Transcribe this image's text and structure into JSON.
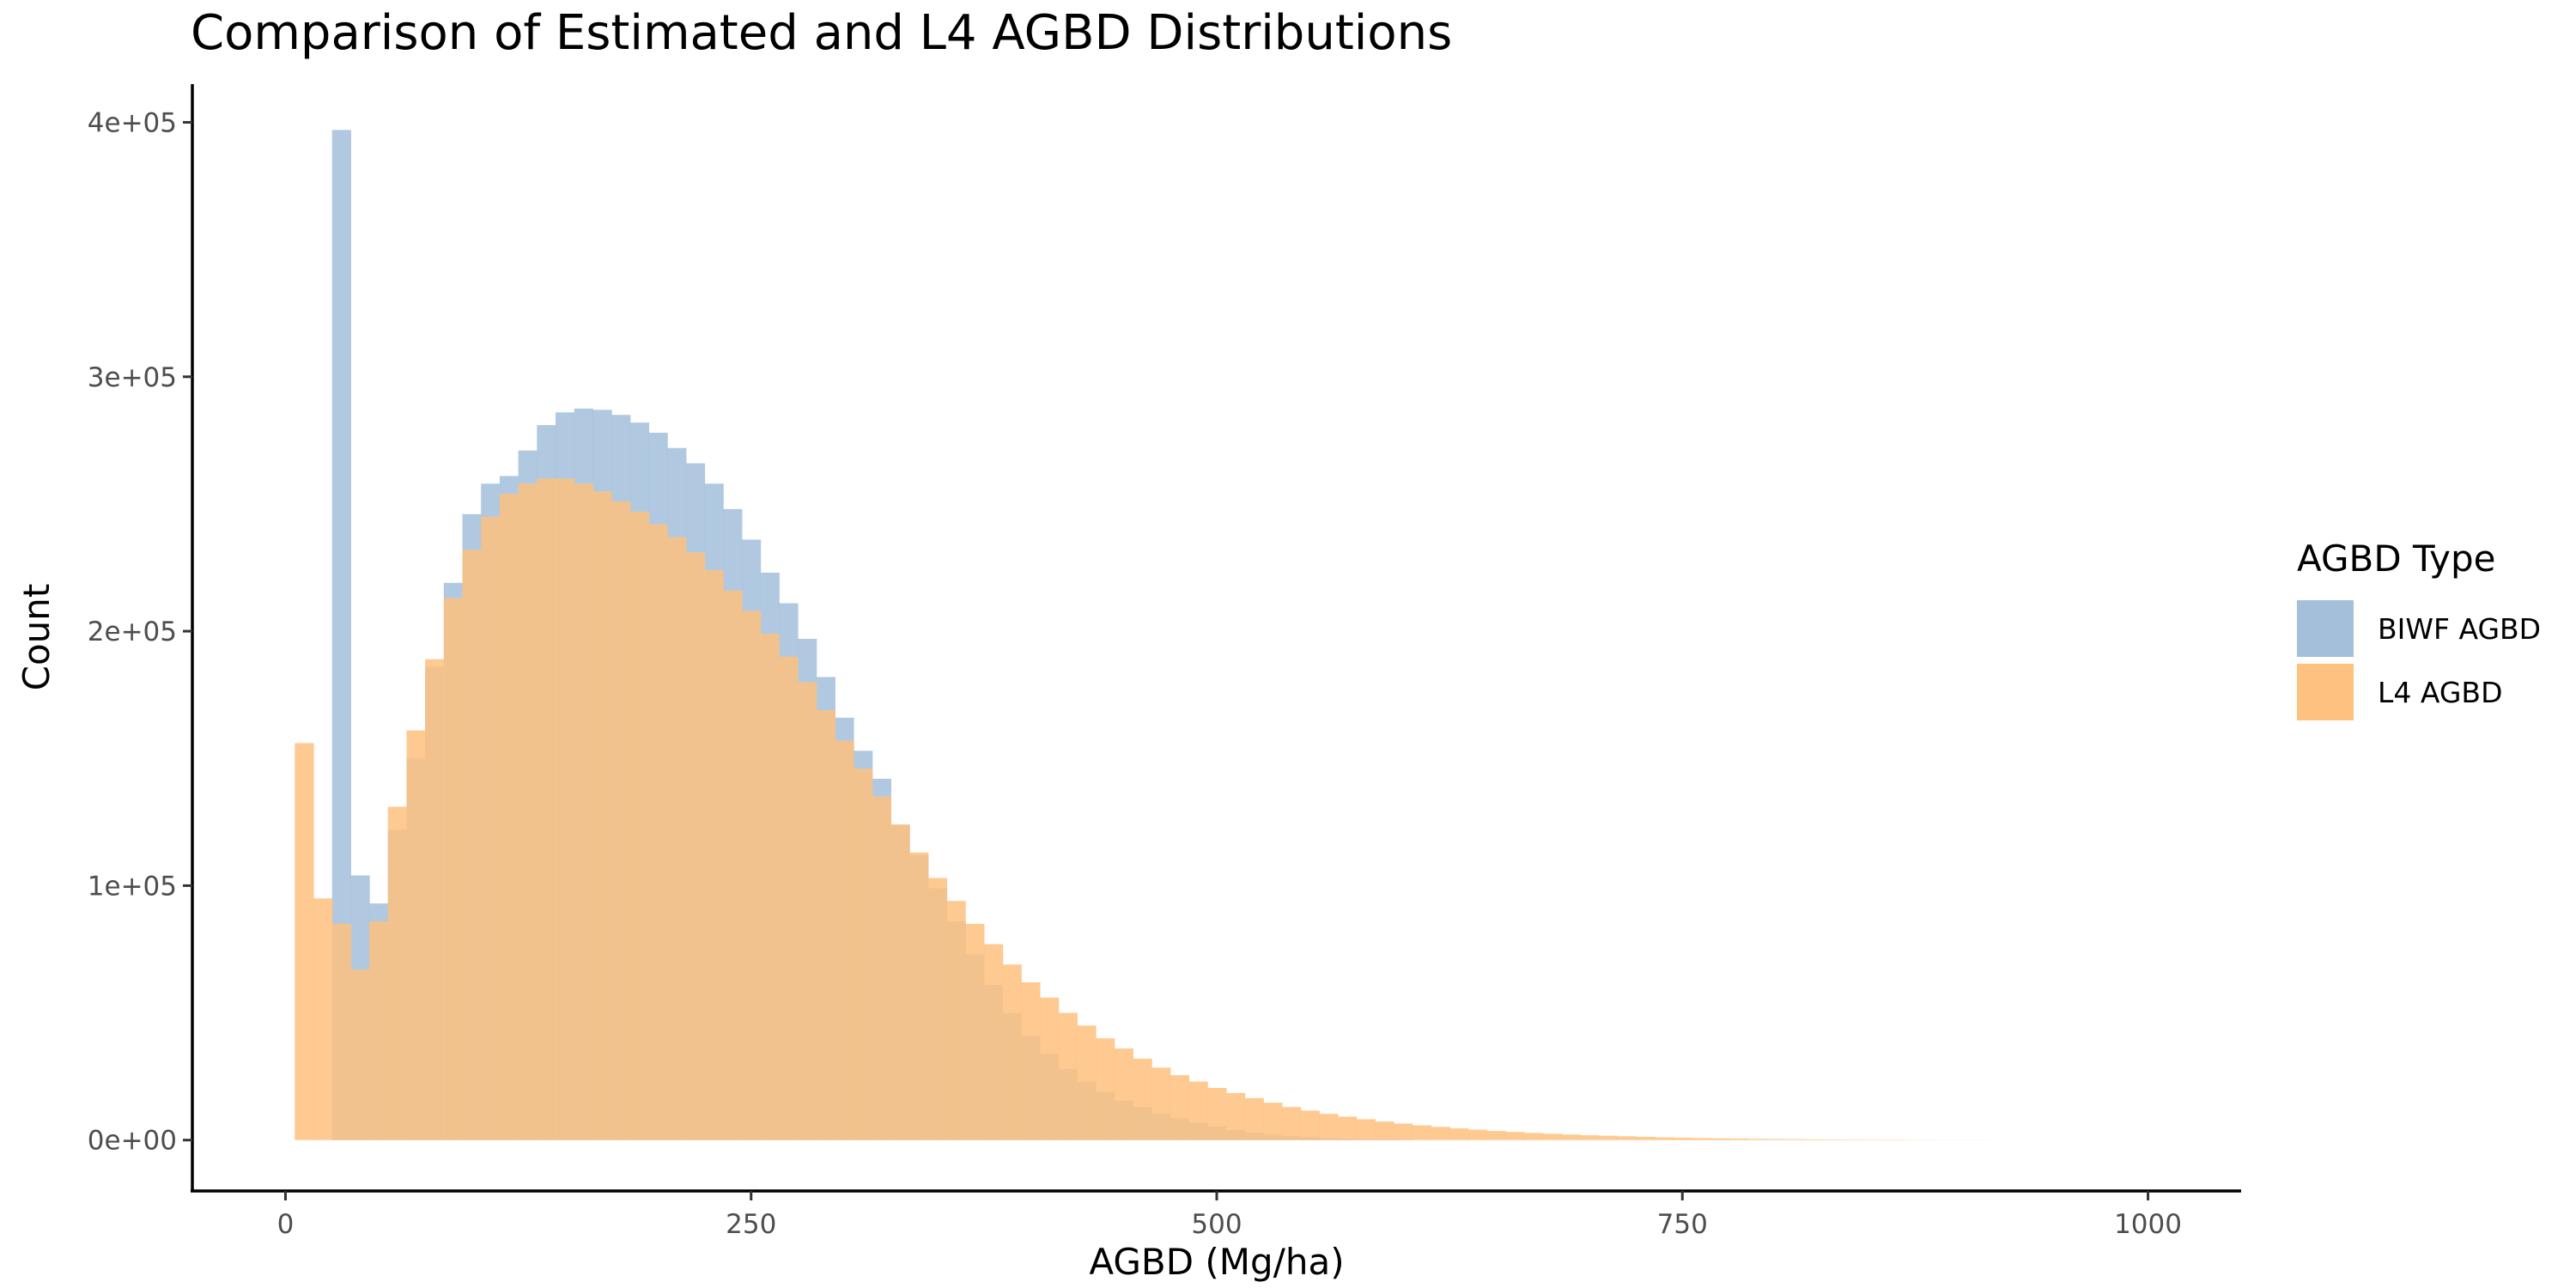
{
  "chart_data": {
    "type": "bar",
    "title": "Comparison of Estimated and L4 AGBD Distributions",
    "xlabel": "AGBD (Mg/ha)",
    "ylabel": "Count",
    "xlim": [
      -50,
      1050
    ],
    "ylim": [
      -20000,
      415000
    ],
    "x_ticks": [
      0,
      250,
      500,
      750,
      1000
    ],
    "x_tick_labels": [
      "0",
      "250",
      "500",
      "750",
      "1000"
    ],
    "y_ticks": [
      0,
      100000,
      200000,
      300000,
      400000
    ],
    "y_tick_labels": [
      "0e+00",
      "1e+05",
      "2e+05",
      "3e+05",
      "4e+05"
    ],
    "grid": false,
    "legend": {
      "title": "AGBD Type",
      "position": "right"
    },
    "bin_start": 5,
    "bin_width": 10,
    "series": [
      {
        "name": "BIWF AGBD",
        "color": "#a3bfda",
        "start": 25,
        "values": [
          397000,
          104000,
          93000,
          122000,
          150000,
          186000,
          219000,
          246000,
          258000,
          261000,
          271000,
          281000,
          286000,
          287500,
          287000,
          285000,
          282000,
          278000,
          272000,
          266000,
          258000,
          248000,
          236000,
          223000,
          211000,
          197000,
          182000,
          166000,
          153000,
          142000,
          124000,
          112000,
          99000,
          86000,
          73000,
          61000,
          50000,
          41000,
          34000,
          28000,
          23000,
          19000,
          15500,
          13000,
          10500,
          8500,
          6800,
          5300,
          4000,
          3000,
          2200,
          1600,
          1200,
          800,
          500,
          300,
          200,
          100
        ]
      },
      {
        "name": "L4 AGBD",
        "color": "#fec17f",
        "start": 5,
        "values": [
          156000,
          95000,
          85000,
          67000,
          86000,
          131000,
          161000,
          189000,
          213000,
          232000,
          245000,
          254000,
          258000,
          260000,
          260000,
          258000,
          255000,
          251000,
          247000,
          242000,
          237000,
          231000,
          224000,
          216000,
          208000,
          199000,
          190000,
          180000,
          169000,
          157000,
          146000,
          135000,
          124000,
          113000,
          103000,
          94000,
          85000,
          77000,
          69000,
          62000,
          56000,
          50000,
          45000,
          40000,
          36000,
          32000,
          28500,
          25500,
          23000,
          20500,
          18500,
          16500,
          14700,
          13000,
          11600,
          10300,
          9200,
          8200,
          7300,
          6500,
          5800,
          5200,
          4600,
          4100,
          3600,
          3200,
          2800,
          2500,
          2200,
          1900,
          1700,
          1500,
          1300,
          1100,
          950,
          800,
          700,
          600,
          500,
          420,
          350,
          290,
          240,
          200,
          160,
          130,
          100,
          80,
          60,
          50,
          40
        ]
      }
    ]
  }
}
